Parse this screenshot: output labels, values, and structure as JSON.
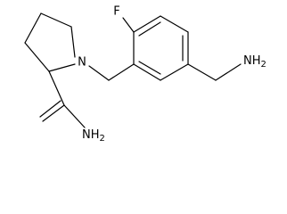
{
  "atoms": [
    {
      "text": "F"
    },
    {
      "text": "N"
    },
    {
      "text": "NH",
      "sub": "2"
    },
    {
      "text": "NH",
      "sub": "2"
    }
  ]
}
